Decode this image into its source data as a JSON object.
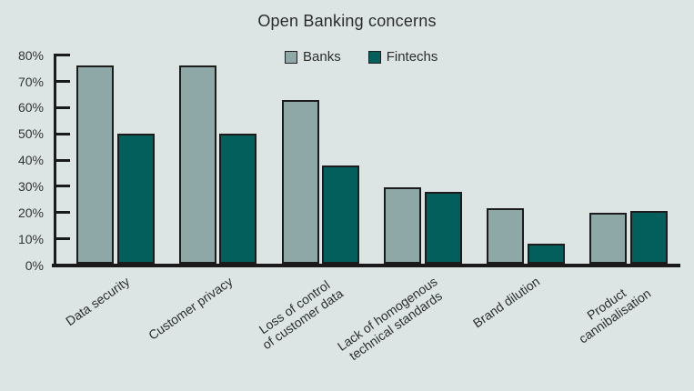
{
  "chart_data": {
    "type": "bar",
    "title": "Open Banking concerns",
    "categories": [
      "Data security",
      "Customer privacy",
      "Loss of control\nof customer data",
      "Lack of homogenous\ntechnical standards",
      "Brand dilution",
      "Product\ncannibalisation"
    ],
    "series": [
      {
        "name": "Banks",
        "color": "#8ea7a7",
        "values": [
          76,
          76,
          63,
          29.5,
          21.5,
          20
        ]
      },
      {
        "name": "Fintechs",
        "color": "#035f5b",
        "values": [
          50,
          50,
          38,
          28,
          8,
          20.5
        ]
      }
    ],
    "xlabel": "",
    "ylabel": "",
    "ylim": [
      0,
      80
    ],
    "ytick_labels": [
      "0%",
      "10%",
      "20%",
      "30%",
      "40%",
      "50%",
      "60%",
      "70%",
      "80%"
    ],
    "grid": false,
    "legend_position": "top-center"
  },
  "colors": {
    "background": "#dce4e4",
    "axis": "#1a1a1a",
    "bar_outline": "#1c1c1c",
    "text": "#2d2d2d"
  }
}
